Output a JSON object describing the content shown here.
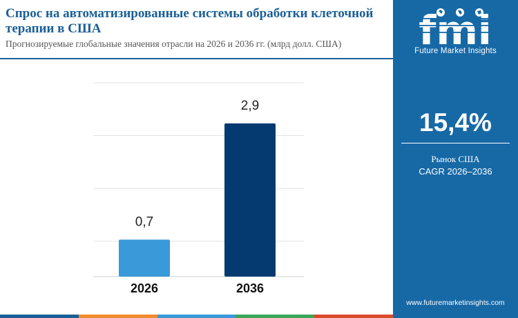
{
  "header": {
    "title": "Спрос на автоматизированные системы обработки клеточной терапии в США",
    "subtitle": "Прогнозируемые глобальные значения отрасли на 2026 и 2036 гг. (млрд долл. США)"
  },
  "chart_data": {
    "type": "bar",
    "categories": [
      "2026",
      "2036"
    ],
    "values": [
      0.7,
      2.9
    ],
    "value_labels": [
      "0,7",
      "2,9"
    ],
    "title": "",
    "xlabel": "",
    "ylabel": "",
    "ylim": [
      0,
      3.8
    ],
    "grid": true,
    "legend": "none",
    "bar_colors": [
      "#3a99d8",
      "#053a70"
    ]
  },
  "sidebar": {
    "logo_text": "fmi",
    "logo_caption": "Future Market Insights",
    "cagr_value": "15,4%",
    "cagr_label": "Рынок США",
    "cagr_range": "CAGR 2026–2036",
    "website": "www.futuremarketinsights.com"
  },
  "colors": {
    "brand_blue": "#1a5f97",
    "sidebar_blue": "#1769a6",
    "footer_stripes": [
      "#1a5f97",
      "#f08c2b",
      "#3a99d8",
      "#3aa858",
      "#d94b2b"
    ]
  }
}
